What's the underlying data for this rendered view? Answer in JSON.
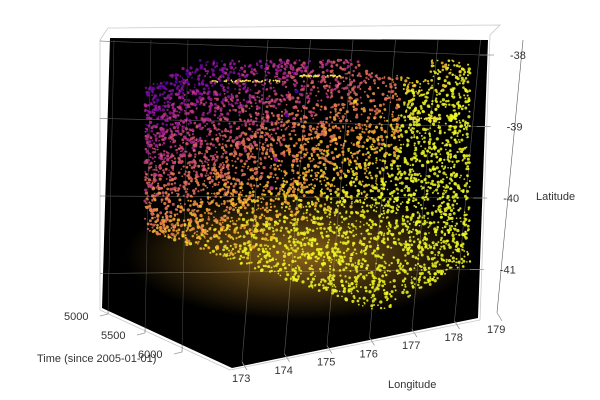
{
  "chart_data": {
    "type": "scatter",
    "dimensions": 3,
    "axes": {
      "longitude": {
        "label": "Longitude",
        "ticks": [
          "173",
          "174",
          "175",
          "176",
          "177",
          "178",
          "179"
        ],
        "range": [
          172.6,
          179.4
        ]
      },
      "latitude": {
        "label": "Latitude",
        "ticks": [
          "-38",
          "-39",
          "-40",
          "-41"
        ],
        "range": [
          -41.8,
          -37.7
        ]
      },
      "time": {
        "label": "Time (since 2005-01-01)",
        "ticks": [
          "5000",
          "5500",
          "6000"
        ],
        "range": [
          4800,
          6300
        ]
      }
    },
    "panel_background": "#000000",
    "grid": true,
    "colormap": [
      "#0d0887",
      "#5b02a3",
      "#9a179b",
      "#cb4678",
      "#eb7852",
      "#fbb32f",
      "#f0f921"
    ],
    "density_note": "",
    "series": [
      {
        "values": [
          {
            "longitude": 176.2,
            "latitude": -38.3,
            "time": 5200,
            "color_index": 0.1
          },
          {
            "longitude": 175.4,
            "latitude": -38.7,
            "time": 5600,
            "color_index": 0.15
          },
          {
            "longitude": 175.1,
            "latitude": -39.6,
            "time": 5450,
            "color_index": 0.35
          },
          {
            "longitude": 174.5,
            "latitude": -40.1,
            "time": 5900,
            "color_index": 0.45
          },
          {
            "longitude": 176.8,
            "latitude": -40.3,
            "time": 5300,
            "color_index": 0.8
          },
          {
            "longitude": 177.4,
            "latitude": -39.2,
            "time": 5700,
            "color_index": 0.85
          },
          {
            "longitude": 174.2,
            "latitude": -41.0,
            "time": 5550,
            "color_index": 0.9
          },
          {
            "longitude": 177.9,
            "latitude": -38.4,
            "time": 6050,
            "color_index": 0.88
          }
        ]
      }
    ]
  }
}
